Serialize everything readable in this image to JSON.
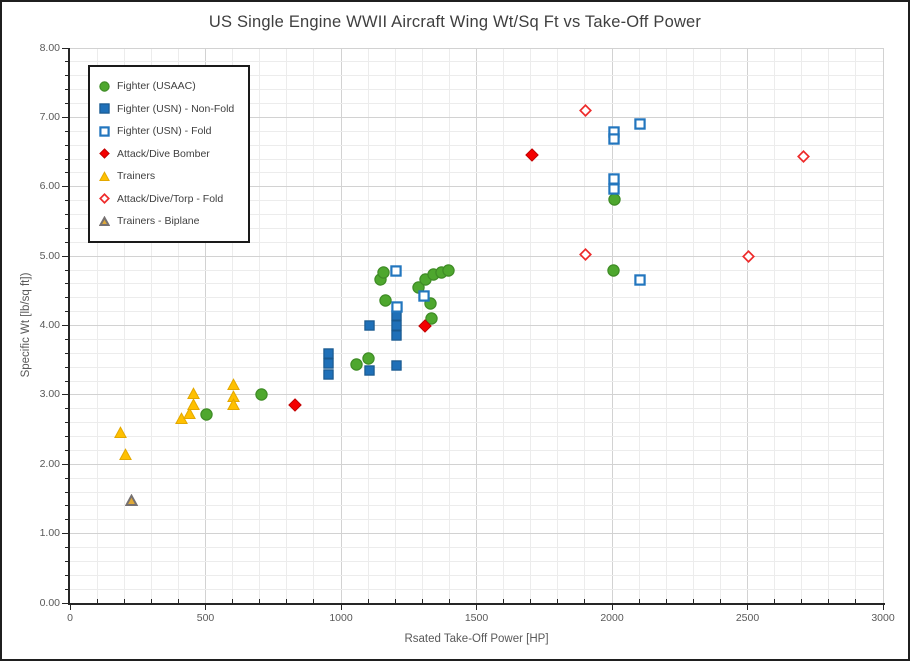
{
  "title": "US Single Engine WWII Aircraft Wing Wt/Sq Ft vs Take-Off Power",
  "chart_data": {
    "type": "scatter",
    "title": "US Single Engine WWII Aircraft Wing Wt/Sq Ft vs Take-Off Power",
    "xlabel": "Rsated Take-Off Power [HP]",
    "ylabel": "Specific Wt [lb/sq ft])",
    "xlim": [
      0,
      3000
    ],
    "ylim": [
      0,
      8
    ],
    "x_major": 500,
    "x_minor": 100,
    "y_major": 1,
    "y_minor": 0.2,
    "x_tick_labels": [
      "0",
      "500",
      "1000",
      "1500",
      "2000",
      "2500",
      "3000"
    ],
    "y_tick_labels": [
      "0.00",
      "1.00",
      "2.00",
      "3.00",
      "4.00",
      "5.00",
      "6.00",
      "7.00",
      "8.00"
    ],
    "grid": true,
    "legend_position": "top-left",
    "colors": {
      "grid_minor": "#ececec",
      "grid_major": "#d2d2d2",
      "axis": "#262626",
      "tick_label": "#595959",
      "title_text": "#3f3f3f"
    },
    "series": [
      {
        "name": "Fighter (USAAC)",
        "marker": "circle",
        "filled": true,
        "fill": "#4EA72E",
        "stroke": "#3F8C26",
        "sw": 1.2,
        "size": 13,
        "points": [
          [
            505,
            2.72
          ],
          [
            705,
            3.0
          ],
          [
            1056,
            3.44
          ],
          [
            1102,
            3.53
          ],
          [
            1147,
            4.66
          ],
          [
            1157,
            4.77
          ],
          [
            1163,
            4.36
          ],
          [
            1285,
            4.55
          ],
          [
            1310,
            4.66
          ],
          [
            1340,
            4.73
          ],
          [
            1370,
            4.77
          ],
          [
            1395,
            4.79
          ],
          [
            1332,
            4.31
          ],
          [
            1335,
            4.1
          ],
          [
            2008,
            5.81
          ],
          [
            2006,
            4.79
          ]
        ]
      },
      {
        "name": "Fighter (USN) - Non-Fold",
        "marker": "square",
        "filled": true,
        "fill": "#1F70B8",
        "stroke": "#18598F",
        "sw": 1.2,
        "size": 11,
        "points": [
          [
            955,
            3.6
          ],
          [
            955,
            3.45
          ],
          [
            955,
            3.3
          ],
          [
            1104,
            4.0
          ],
          [
            1104,
            3.35
          ],
          [
            1203,
            4.15
          ],
          [
            1203,
            4.0
          ],
          [
            1203,
            3.85
          ],
          [
            1203,
            3.43
          ]
        ]
      },
      {
        "name": "Fighter (USN) - Fold",
        "marker": "square",
        "filled": false,
        "fill": "#FFFFFF",
        "stroke": "#2276BE",
        "sw": 2.2,
        "size": 12,
        "points": [
          [
            1203,
            4.78
          ],
          [
            1207,
            4.27
          ],
          [
            1305,
            4.42
          ],
          [
            2008,
            6.79
          ],
          [
            2008,
            6.69
          ],
          [
            2008,
            6.11
          ],
          [
            2008,
            5.97
          ],
          [
            2104,
            6.9
          ],
          [
            2104,
            4.65
          ]
        ]
      },
      {
        "name": "Attack/Dive Bomber",
        "marker": "diamond",
        "filled": true,
        "fill": "#F40000",
        "stroke": "#C00000",
        "sw": 1,
        "size": 14,
        "points": [
          [
            832,
            2.86
          ],
          [
            1309,
            4.0
          ],
          [
            1704,
            6.46
          ]
        ]
      },
      {
        "name": "Trainers",
        "marker": "triangle",
        "filled": true,
        "fill": "#FFC000",
        "stroke": "#E3A800",
        "sw": 1,
        "size": 13,
        "points": [
          [
            185,
            2.46
          ],
          [
            203,
            2.14
          ],
          [
            413,
            2.66
          ],
          [
            442,
            2.73
          ],
          [
            456,
            3.02
          ],
          [
            456,
            2.86
          ],
          [
            605,
            3.15
          ],
          [
            605,
            2.97
          ],
          [
            605,
            2.86
          ]
        ]
      },
      {
        "name": "Attack/Dive/Torp - Fold",
        "marker": "diamond",
        "filled": false,
        "fill": "#FFFFFF",
        "stroke": "#EE2B2B",
        "sw": 1.7,
        "size": 13,
        "points": [
          [
            1903,
            7.1
          ],
          [
            1903,
            5.03
          ],
          [
            2503,
            5.0
          ],
          [
            2706,
            6.44
          ]
        ]
      },
      {
        "name": "Trainers - Biplane",
        "marker": "triangle",
        "filled": true,
        "fill": "#DFA938",
        "stroke": "#767171",
        "sw": 2,
        "size": 13,
        "points": [
          [
            226,
            1.48
          ]
        ]
      }
    ]
  }
}
